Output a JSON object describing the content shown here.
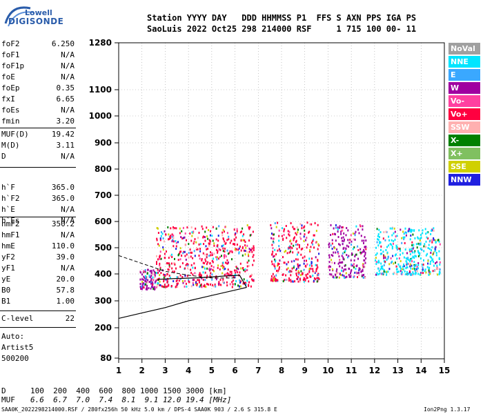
{
  "logo": {
    "brand": "Lowell",
    "product": "DIGISONDE"
  },
  "header": {
    "line1": "Station YYYY DAY   DDD HHMMSS P1  FFS S AXN PPS IGA PS",
    "line2": "SaoLuis 2022 Oct25 298 214000 RSF     1 715 100 00- 11"
  },
  "params_group1": [
    {
      "name": "foF2",
      "value": "6.250"
    },
    {
      "name": "foF1",
      "value": "N/A"
    },
    {
      "name": "foF1p",
      "value": "N/A"
    },
    {
      "name": "foE",
      "value": "N/A"
    },
    {
      "name": "foEp",
      "value": "0.35"
    },
    {
      "name": "fxI",
      "value": "6.65"
    },
    {
      "name": "foEs",
      "value": "N/A"
    },
    {
      "name": "fmin",
      "value": "3.20"
    }
  ],
  "params_group2": [
    {
      "name": "MUF(D)",
      "value": "19.42"
    },
    {
      "name": "M(D)",
      "value": "3.11"
    },
    {
      "name": "D",
      "value": "N/A"
    }
  ],
  "params_group3": [
    {
      "name": "h`F",
      "value": "365.0"
    },
    {
      "name": "h`F2",
      "value": "365.0"
    },
    {
      "name": "h`E",
      "value": "N/A"
    },
    {
      "name": "h`Es",
      "value": "N/A"
    }
  ],
  "params_group4": [
    {
      "name": "hmF2",
      "value": "350.2"
    },
    {
      "name": "hmF1",
      "value": "N/A"
    },
    {
      "name": "hmE",
      "value": "110.0"
    },
    {
      "name": "yF2",
      "value": "39.0"
    },
    {
      "name": "yF1",
      "value": "N/A"
    },
    {
      "name": "yE",
      "value": "20.0"
    },
    {
      "name": "B0",
      "value": "57.8"
    },
    {
      "name": "B1",
      "value": "1.00"
    }
  ],
  "params_group5": [
    {
      "name": "C-level",
      "value": "22"
    }
  ],
  "auto_info": {
    "line1": "Auto:",
    "line2": "Artist5",
    "line3": "500200"
  },
  "legend": [
    {
      "label": "NoVal",
      "color": "#a0a0a0"
    },
    {
      "label": "NNE",
      "color": "#00e5ff"
    },
    {
      "label": "E",
      "color": "#3aa8ff"
    },
    {
      "label": "W",
      "color": "#a000a0"
    },
    {
      "label": "Vo-",
      "color": "#ff40a0"
    },
    {
      "label": "Vo+",
      "color": "#ff0040"
    },
    {
      "label": "SSW",
      "color": "#ffb0b0"
    },
    {
      "label": "X-",
      "color": "#008000"
    },
    {
      "label": "X+",
      "color": "#80c060"
    },
    {
      "label": "SSE",
      "color": "#d0d000"
    },
    {
      "label": "NNW",
      "color": "#2020e0"
    }
  ],
  "chart_data": {
    "type": "scatter",
    "title": "",
    "xlabel": "",
    "ylabel": "",
    "xlim": [
      1,
      15
    ],
    "ylim": [
      80,
      1280
    ],
    "y_scale": "nonlinear ionogram height scale",
    "x_ticks": [
      1,
      2,
      3,
      4,
      5,
      6,
      7,
      8,
      9,
      10,
      11,
      12,
      13,
      14,
      15
    ],
    "y_ticks": [
      80,
      200,
      300,
      400,
      500,
      600,
      700,
      800,
      900,
      1000,
      1100,
      1280
    ],
    "grid": true,
    "legend_position": "right",
    "echo_bands": [
      {
        "x_start": 1.9,
        "x_end": 2.6,
        "y_low": 345,
        "y_high": 420,
        "series": "W"
      },
      {
        "x_start": 2.6,
        "x_end": 6.8,
        "y_low": 355,
        "y_high": 590,
        "series": "Vo+"
      },
      {
        "x_start": 7.5,
        "x_end": 9.6,
        "y_low": 375,
        "y_high": 600,
        "series": "Vo+"
      },
      {
        "x_start": 10.0,
        "x_end": 11.6,
        "y_low": 390,
        "y_high": 590,
        "series": "W"
      },
      {
        "x_start": 12.0,
        "x_end": 14.8,
        "y_low": 400,
        "y_high": 580,
        "series": "NNE"
      }
    ],
    "fitted_trace": [
      [
        1.0,
        235
      ],
      [
        2.0,
        255
      ],
      [
        3.0,
        275
      ],
      [
        4.0,
        300
      ],
      [
        5.0,
        320
      ],
      [
        6.0,
        340
      ],
      [
        6.5,
        350
      ]
    ],
    "o_trace": [
      [
        2.7,
        380
      ],
      [
        3.5,
        383
      ],
      [
        4.5,
        386
      ],
      [
        5.5,
        392
      ],
      [
        6.2,
        395
      ],
      [
        6.5,
        350
      ]
    ],
    "dashed_trace": [
      [
        1.0,
        470
      ],
      [
        2.0,
        440
      ],
      [
        3.0,
        410
      ],
      [
        4.0,
        395
      ],
      [
        5.0,
        385
      ],
      [
        6.0,
        385
      ]
    ]
  },
  "footer": {
    "d_label": "D",
    "d_values": "100  200  400  600  800 1000 1500 3000 [km]",
    "muf_label": "MUF",
    "muf_values": "6.6  6.7  7.0  7.4  8.1  9.1 12.0 19.4 [MHz]",
    "file_info": "SAA0K_2022298214000.RSF / 280fx256h 50 kHz 5.0 km / DPS-4 SAA0K 903 / 2.6 S 315.8 E",
    "version": "Ion2Png 1.3.17"
  }
}
